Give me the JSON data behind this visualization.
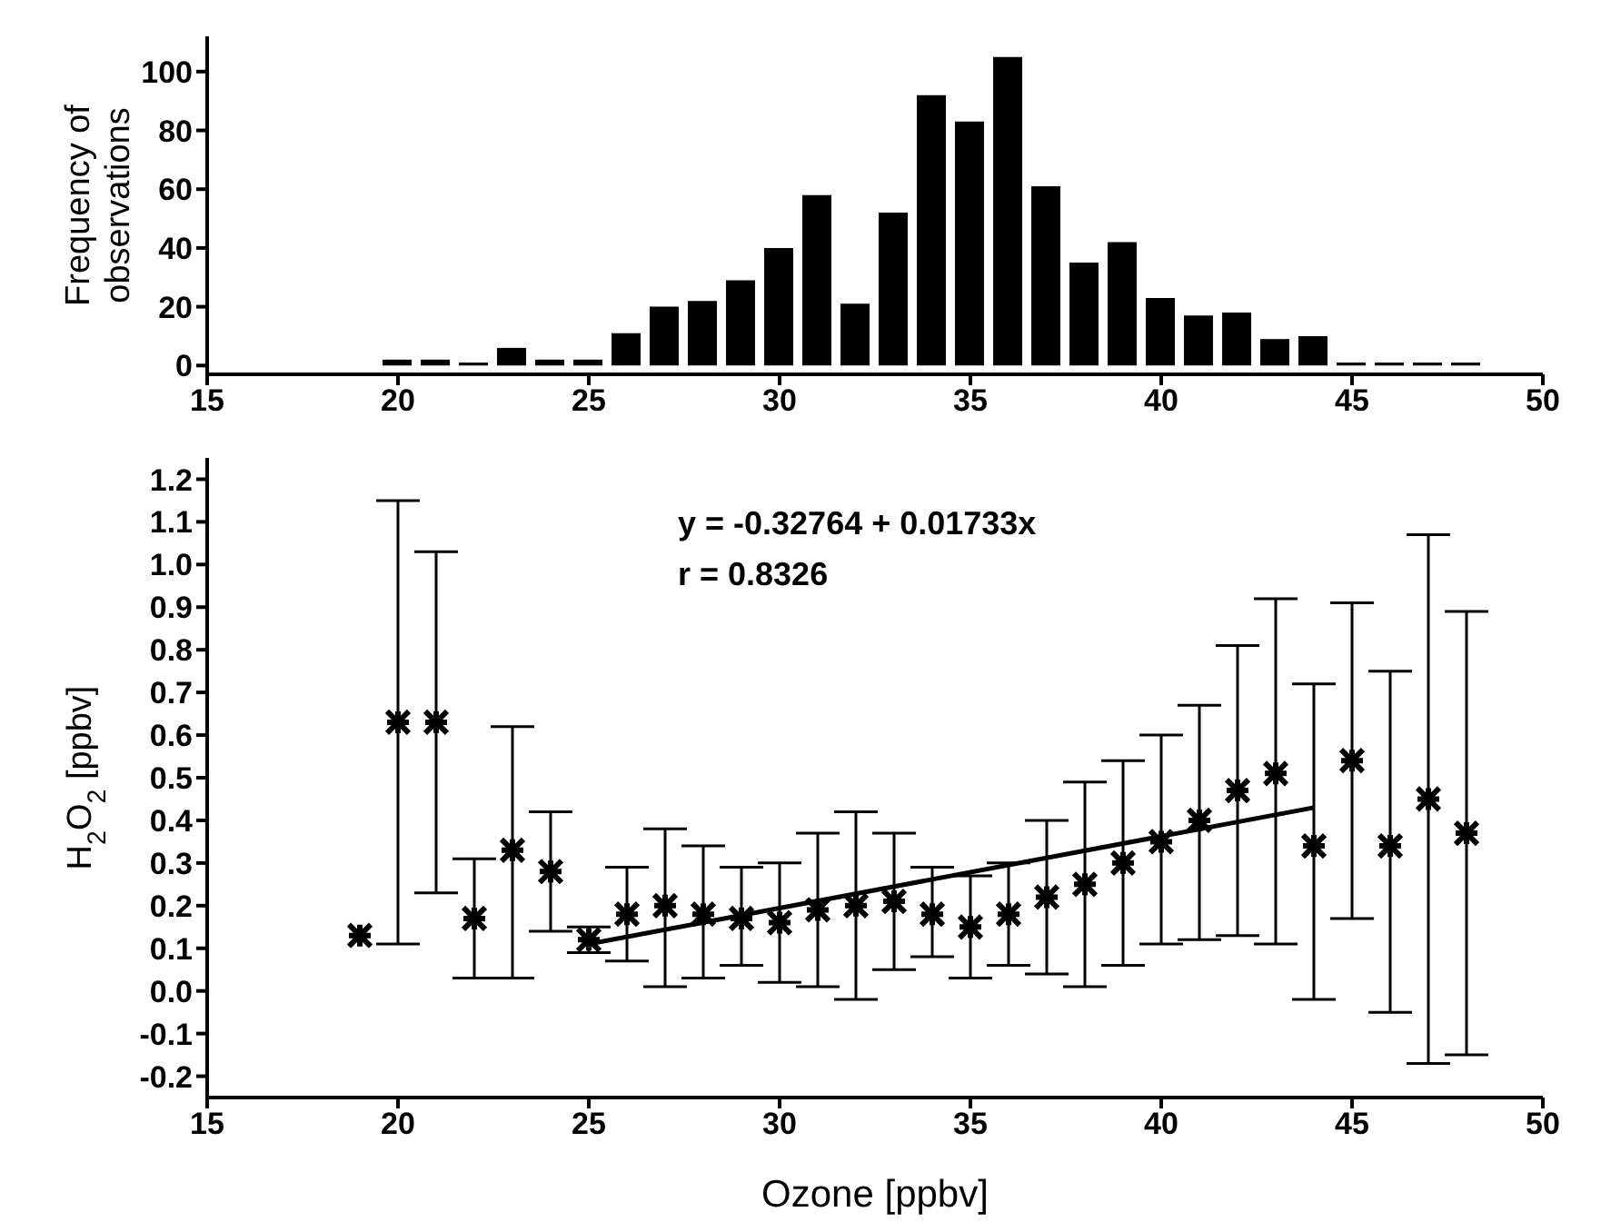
{
  "chart_data": [
    {
      "type": "bar",
      "ylabel": "Frequency of observations",
      "color": "#000000",
      "x": [
        20,
        21,
        22,
        23,
        24,
        25,
        26,
        27,
        28,
        29,
        30,
        31,
        32,
        33,
        34,
        35,
        36,
        37,
        38,
        39,
        40,
        41,
        42,
        43,
        44,
        45,
        46,
        47,
        48
      ],
      "values": [
        2,
        2,
        1,
        6,
        2,
        2,
        11,
        20,
        22,
        29,
        40,
        58,
        21,
        52,
        92,
        83,
        105,
        61,
        35,
        42,
        23,
        17,
        18,
        9,
        10,
        1,
        1,
        1,
        1
      ],
      "xlim": [
        15,
        50
      ],
      "xticks": [
        15,
        20,
        25,
        30,
        35,
        40,
        45,
        50
      ],
      "ylim": [
        -3,
        112
      ],
      "yticks": [
        0,
        20,
        40,
        60,
        80,
        100
      ]
    },
    {
      "type": "scatter",
      "xlabel": "Ozone [ppbv]",
      "ylabel": "H$_{2}$O$_{2}$ [ppbv]",
      "annotations": [
        "y = -0.32764 + 0.01733x",
        "r = 0.8326"
      ],
      "xlim": [
        15,
        50
      ],
      "xticks": [
        15,
        20,
        25,
        30,
        35,
        40,
        45,
        50
      ],
      "ylim": [
        -0.25,
        1.25
      ],
      "yticks": [
        -0.2,
        -0.1,
        {
          "value": 0,
          "label": "0.0"
        },
        0.1,
        0.2,
        0.3,
        0.4,
        0.5,
        0.6,
        0.7,
        0.8,
        0.9,
        {
          "value": 1,
          "label": "1.0"
        },
        1.1,
        1.2
      ],
      "series": [
        {
          "type": "scatter",
          "color": "#000000",
          "marker": "cross",
          "x": [
            19,
            20,
            21,
            22,
            23,
            24,
            25,
            26,
            27,
            28,
            29,
            30,
            31,
            32,
            33,
            34,
            35,
            36,
            37,
            38,
            39,
            40,
            41,
            42,
            43,
            44,
            45,
            46,
            47,
            48
          ],
          "values": [
            0.13,
            0.63,
            0.63,
            0.17,
            0.33,
            0.28,
            0.12,
            0.18,
            0.2,
            0.18,
            0.17,
            0.16,
            0.19,
            0.2,
            0.21,
            0.18,
            0.15,
            0.18,
            0.22,
            0.25,
            0.3,
            0.35,
            0.4,
            0.47,
            0.51,
            0.34,
            0.54,
            0.34,
            0.45,
            0.37
          ],
          "errors": [
            null,
            [
              0.11,
              1.15
            ],
            [
              0.23,
              1.03
            ],
            [
              0.03,
              0.31
            ],
            [
              0.03,
              0.62
            ],
            [
              0.14,
              0.42
            ],
            [
              0.09,
              0.15
            ],
            [
              0.07,
              0.29
            ],
            [
              0.01,
              0.38
            ],
            [
              0.03,
              0.34
            ],
            [
              0.06,
              0.29
            ],
            [
              0.02,
              0.3
            ],
            [
              0.01,
              0.37
            ],
            [
              -0.02,
              0.42
            ],
            [
              0.05,
              0.37
            ],
            [
              0.08,
              0.29
            ],
            [
              0.03,
              0.27
            ],
            [
              0.06,
              0.3
            ],
            [
              0.04,
              0.4
            ],
            [
              0.01,
              0.49
            ],
            [
              0.06,
              0.54
            ],
            [
              0.11,
              0.6
            ],
            [
              0.12,
              0.67
            ],
            [
              0.13,
              0.81
            ],
            [
              0.11,
              0.92
            ],
            [
              -0.02,
              0.72
            ],
            [
              0.17,
              0.91
            ],
            [
              -0.05,
              0.75
            ],
            [
              -0.17,
              1.07
            ],
            [
              -0.15,
              0.89
            ]
          ]
        },
        {
          "type": "line",
          "color": "#000000",
          "x": [
            25,
            44
          ],
          "values": [
            0.11,
            0.43
          ]
        }
      ]
    }
  ]
}
